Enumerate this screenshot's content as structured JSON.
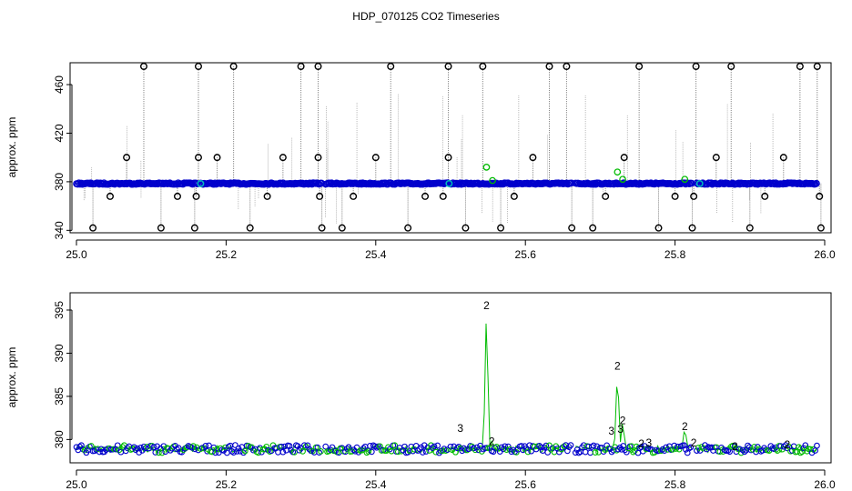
{
  "title": "HDP_070125  CO2 Timeseries",
  "colors": {
    "outlier": "#000000",
    "series1": "#0000cc",
    "series2": "#00bb00",
    "series3": "#00bbbb",
    "drop_line": "#888888"
  },
  "chart_data": [
    {
      "type": "scatter",
      "title": "",
      "xlabel": "",
      "ylabel": "approx. ppm",
      "xlim": [
        25.0,
        26.0
      ],
      "ylim": [
        338,
        478
      ],
      "xticks": [
        "25.0",
        "25.2",
        "25.4",
        "25.6",
        "25.8",
        "26.0"
      ],
      "yticks": [
        "340",
        "380",
        "420",
        "460"
      ],
      "baseline": 378.5,
      "gaps": [
        [
          25.163,
          25.166
        ],
        [
          25.328,
          25.333
        ],
        [
          25.662,
          25.667
        ],
        [
          25.823,
          25.829
        ]
      ],
      "outliers_high": [
        25.09,
        25.163,
        25.21,
        25.3,
        25.323,
        25.42,
        25.497,
        25.543,
        25.632,
        25.655,
        25.752,
        25.828,
        25.875,
        25.967,
        25.99
      ],
      "outliers_400": [
        25.067,
        25.163,
        25.188,
        25.276,
        25.323,
        25.4,
        25.497,
        25.61,
        25.732,
        25.855,
        25.945
      ],
      "outliers_368": [
        25.045,
        25.135,
        25.16,
        25.255,
        25.325,
        25.37,
        25.466,
        25.49,
        25.585,
        25.707,
        25.8,
        25.825,
        25.92,
        25.993
      ],
      "outliers_low": [
        25.022,
        25.113,
        25.158,
        25.232,
        25.328,
        25.355,
        25.443,
        25.52,
        25.567,
        25.662,
        25.69,
        25.778,
        25.823,
        25.9,
        25.995
      ],
      "series_points": [
        {
          "x": 25.548,
          "y": 392
        },
        {
          "x": 25.556,
          "y": 381
        },
        {
          "x": 25.723,
          "y": 388
        },
        {
          "x": 25.73,
          "y": 382
        },
        {
          "x": 25.813,
          "y": 382
        }
      ],
      "cyan_points": [
        {
          "x": 25.166,
          "y": 378.5
        },
        {
          "x": 25.498,
          "y": 378.5
        },
        {
          "x": 25.833,
          "y": 378.5
        }
      ]
    },
    {
      "type": "line",
      "title": "",
      "xlabel": "",
      "ylabel": "approx. ppm",
      "xlim": [
        25.0,
        26.0
      ],
      "ylim": [
        377.3,
        397
      ],
      "xticks": [
        "25.0",
        "25.2",
        "25.4",
        "25.6",
        "25.8",
        "26.0"
      ],
      "yticks": [
        "380",
        "385",
        "390",
        "395"
      ],
      "series": [
        {
          "symbol": "2",
          "values": [
            {
              "x": 25.548,
              "y": 395.5
            },
            {
              "x": 25.555,
              "y": 379.8
            },
            {
              "x": 25.723,
              "y": 388.5
            },
            {
              "x": 25.73,
              "y": 382.2
            },
            {
              "x": 25.755,
              "y": 379.5
            },
            {
              "x": 25.813,
              "y": 381.5
            },
            {
              "x": 25.825,
              "y": 379.6
            },
            {
              "x": 25.88,
              "y": 379.2
            },
            {
              "x": 25.95,
              "y": 379.4
            }
          ]
        },
        {
          "symbol": "3",
          "values": [
            {
              "x": 25.513,
              "y": 381.3
            },
            {
              "x": 25.715,
              "y": 381.0
            },
            {
              "x": 25.727,
              "y": 381.2
            },
            {
              "x": 25.765,
              "y": 379.6
            }
          ]
        }
      ],
      "segments": [
        [
          25.0,
          25.163
        ],
        [
          25.166,
          25.328
        ],
        [
          25.333,
          25.497
        ],
        [
          25.5,
          25.662
        ],
        [
          25.667,
          25.823
        ],
        [
          25.829,
          25.99
        ]
      ]
    }
  ]
}
